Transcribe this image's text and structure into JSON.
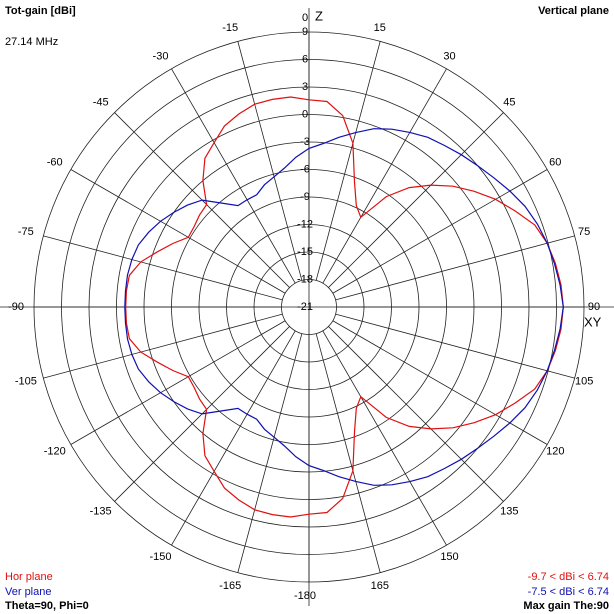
{
  "chart_data": {
    "type": "polar",
    "title": "Tot-gain [dBi]",
    "subtitle": "27.14 MHz",
    "plane_label": "Vertical plane",
    "top_axis_label": "Z",
    "right_axis_label": "XY",
    "condition_label": "Theta=90, Phi=0",
    "max_gain_label": "Max gain The:90",
    "rlim": [
      -21,
      9
    ],
    "rticks": [
      9,
      6,
      3,
      0,
      -3,
      -6,
      -9,
      -12,
      -15,
      -18,
      -21
    ],
    "thetaticks": [
      0,
      15,
      30,
      45,
      60,
      75,
      90,
      105,
      120,
      135,
      150,
      165,
      -180,
      -165,
      -150,
      -135,
      -120,
      -105,
      -90,
      -75,
      -60,
      -45,
      -30,
      -15
    ],
    "grid": true,
    "x": [
      -180,
      -175,
      -170,
      -165,
      -160,
      -155,
      -150,
      -145,
      -140,
      -135,
      -130,
      -125,
      -120,
      -115,
      -110,
      -105,
      -100,
      -95,
      -90,
      -85,
      -80,
      -75,
      -70,
      -65,
      -60,
      -55,
      -50,
      -45,
      -40,
      -35,
      -30,
      -25,
      -20,
      -15,
      -10,
      -5,
      0,
      5,
      10,
      15,
      20,
      25,
      30,
      35,
      40,
      45,
      50,
      55,
      60,
      65,
      70,
      75,
      80,
      85,
      90,
      95,
      100,
      105,
      110,
      115,
      120,
      125,
      130,
      135,
      140,
      145,
      150,
      155,
      160,
      165,
      170,
      175
    ],
    "series": [
      {
        "name": "Hor plane",
        "color": "#e01010",
        "range_label": "-9.7 < dBi < 6.74",
        "values": [
          1.6,
          2.0,
          2.0,
          1.9,
          1.4,
          0.8,
          -0.3,
          -1.2,
          -3.0,
          -5.2,
          -5.4,
          -5.7,
          -5.8,
          -4.6,
          -3.4,
          -2.0,
          -1.1,
          -1.0,
          -1.0,
          -1.0,
          -1.1,
          -2.0,
          -3.4,
          -4.6,
          -5.8,
          -5.7,
          -5.4,
          -5.2,
          -3.0,
          -1.2,
          -0.3,
          0.8,
          1.4,
          1.9,
          2.0,
          2.0,
          1.6,
          1.5,
          0.2,
          -2.5,
          -6.5,
          -8.8,
          -9.7,
          -6.3,
          -4.0,
          -2.2,
          -0.5,
          1.0,
          2.5,
          3.8,
          5.2,
          5.9,
          6.3,
          6.6,
          6.74,
          6.6,
          6.3,
          5.9,
          5.2,
          3.8,
          2.5,
          1.0,
          -0.5,
          -2.2,
          -4.0,
          -6.3,
          -9.7,
          -8.8,
          -6.5,
          -2.5,
          0.2,
          1.5
        ]
      },
      {
        "name": "Ver plane",
        "color": "#1010b0",
        "range_label": "-7.5 < dBi < 6.74",
        "values": [
          -3.7,
          -4.6,
          -5.6,
          -6.3,
          -6.8,
          -7.5,
          -7.5,
          -7.5,
          -6.2,
          -4.5,
          -3.7,
          -3.0,
          -2.3,
          -1.7,
          -1.2,
          -1.0,
          -0.9,
          -0.9,
          -0.9,
          -0.9,
          -0.9,
          -1.0,
          -1.2,
          -1.7,
          -2.3,
          -3.0,
          -3.7,
          -4.5,
          -6.2,
          -7.5,
          -7.5,
          -7.5,
          -6.8,
          -6.3,
          -5.6,
          -4.6,
          -3.7,
          -3.1,
          -2.2,
          -1.3,
          -0.3,
          0.4,
          1.0,
          1.6,
          2.0,
          2.5,
          3.0,
          3.6,
          4.3,
          5.0,
          5.5,
          5.9,
          6.2,
          6.5,
          6.74,
          6.5,
          6.2,
          5.9,
          5.5,
          5.0,
          4.3,
          3.6,
          3.0,
          2.5,
          2.0,
          1.6,
          1.0,
          0.4,
          -0.3,
          -1.3,
          -2.2,
          -3.1
        ]
      }
    ]
  }
}
